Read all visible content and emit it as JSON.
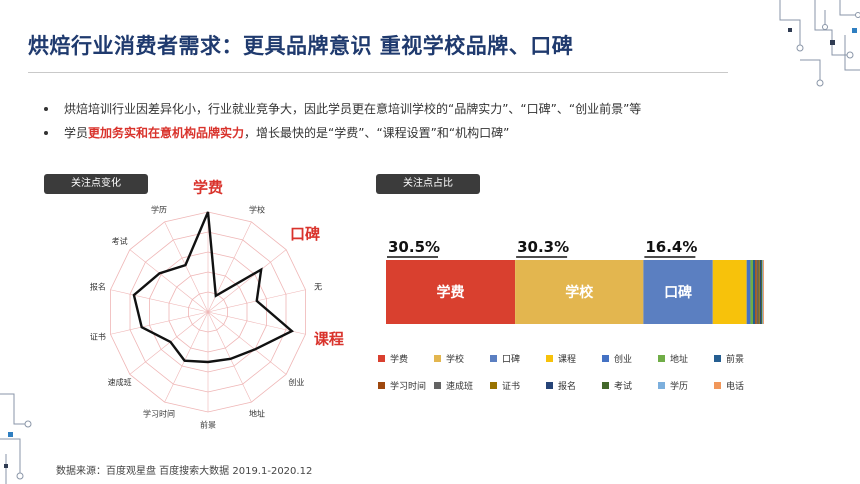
{
  "slide": {
    "title": "烘焙行业消费者需求：更具品牌意识 重视学校品牌、口碑",
    "bullets": [
      {
        "text": "烘焙培训行业因差异化小，行业就业竞争大，因此学员更在意培训学校的“品牌实力”、“口碑”、“创业前景”等"
      },
      {
        "prefix": "学员",
        "highlight": "更加务实和在意机构品牌实力",
        "suffix": "，增长最快的是“学费”、“课程设置”和“机构口碑”"
      }
    ],
    "source": "数据来源：百度观星盘 百度搜索大数据 2019.1-2020.12"
  },
  "colors": {
    "title": "#1f3a6e",
    "highlight": "#d9332c",
    "chip": "#3b3b3b"
  },
  "chart_data": [
    {
      "type": "radar",
      "title": "关注点变化",
      "axes": [
        "学费",
        "学校",
        "口碑",
        "无",
        "课程",
        "创业",
        "地址",
        "前景",
        "学习时间",
        "速成班",
        "证书",
        "报名",
        "考试",
        "学历"
      ],
      "highlighted_axes": [
        "学费",
        "口碑",
        "课程"
      ],
      "rings": 5,
      "values": [
        5.0,
        0.9,
        3.4,
        2.5,
        4.3,
        3.0,
        2.6,
        2.5,
        2.7,
        2.4,
        3.4,
        3.8,
        3.1,
        2.6
      ],
      "ylim": [
        0,
        5
      ]
    },
    {
      "type": "bar",
      "stacked": true,
      "orientation": "horizontal",
      "title": "关注点占比",
      "series": [
        {
          "name": "学费",
          "value": 30.5,
          "color": "#d9402f",
          "label": "30.5%"
        },
        {
          "name": "学校",
          "value": 30.3,
          "color": "#e3b64f",
          "label": "30.3%"
        },
        {
          "name": "口碑",
          "value": 16.4,
          "color": "#5b7fc1",
          "label": "16.4%"
        },
        {
          "name": "课程",
          "value": 8.0,
          "color": "#f7c20b"
        },
        {
          "name": "创业",
          "value": 0.9,
          "color": "#4472c4"
        },
        {
          "name": "地址",
          "value": 0.6,
          "color": "#70ad47"
        },
        {
          "name": "前景",
          "value": 0.5,
          "color": "#255e91"
        },
        {
          "name": "学习时间",
          "value": 0.4,
          "color": "#9e480e"
        },
        {
          "name": "速成班",
          "value": 0.4,
          "color": "#636363"
        },
        {
          "name": "证书",
          "value": 0.3,
          "color": "#997300"
        },
        {
          "name": "报名",
          "value": 0.3,
          "color": "#264478"
        },
        {
          "name": "考试",
          "value": 0.3,
          "color": "#43682b"
        },
        {
          "name": "学历",
          "value": 0.2,
          "color": "#7cafdd"
        },
        {
          "name": "电话",
          "value": 0.2,
          "color": "#f1975a"
        }
      ],
      "inner_labels": [
        "学费",
        "学校",
        "口碑"
      ],
      "legend_position": "bottom"
    }
  ]
}
